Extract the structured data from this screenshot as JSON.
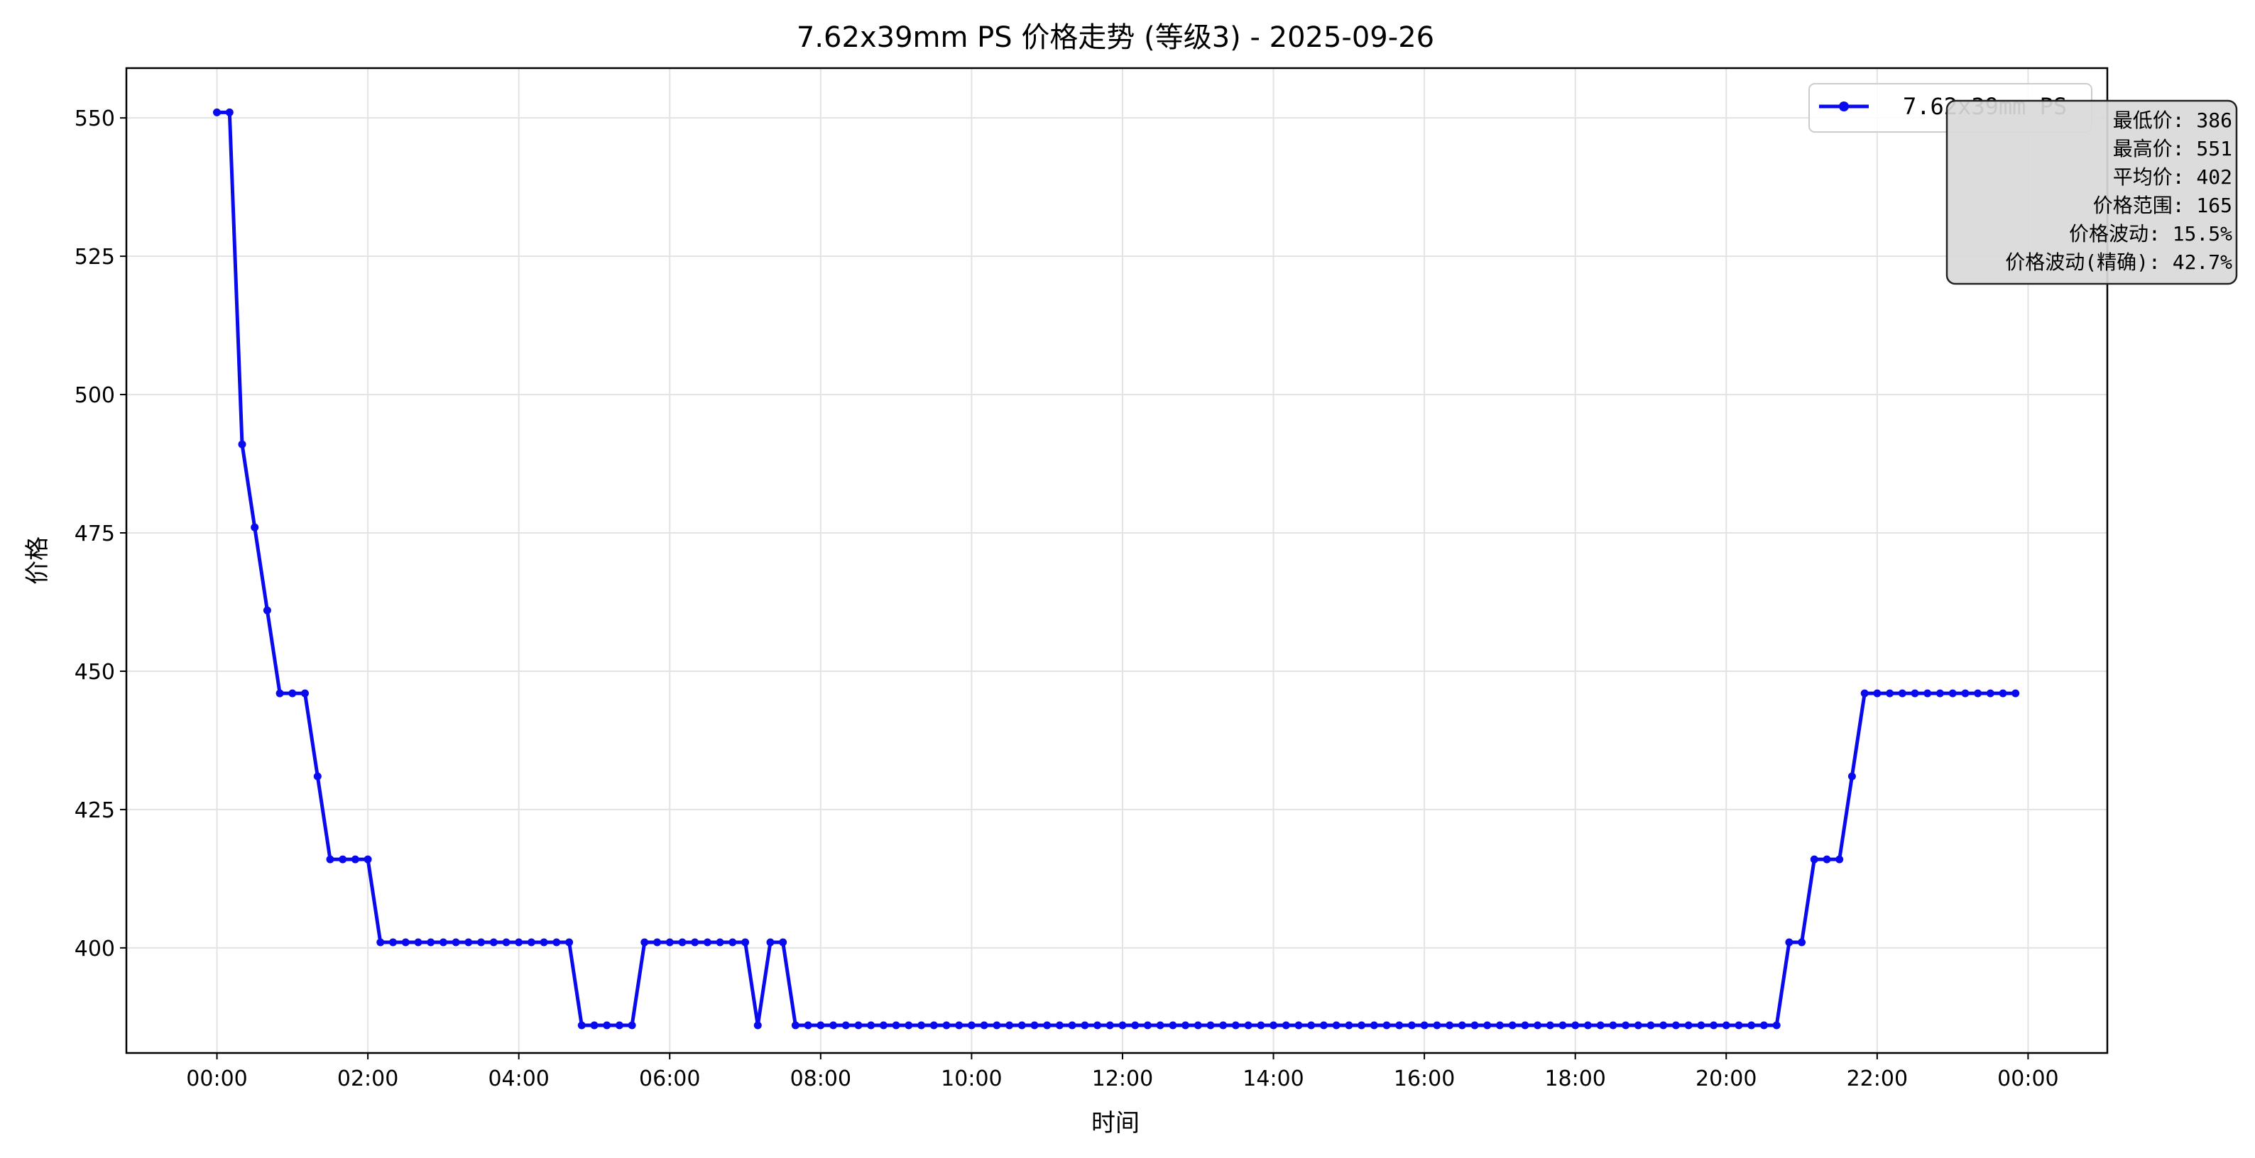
{
  "colors": {
    "line": "#0a0aee",
    "grid": "#e3e3e3",
    "axis": "#000000",
    "stats_bg": "#d9d9d9"
  },
  "chart_data": {
    "type": "line",
    "title": "7.62x39mm PS 价格走势 (等级3) - 2025-09-26",
    "xlabel": "时间",
    "ylabel": "价格",
    "xlim_hours": [
      -1.2,
      25.05
    ],
    "ylim": [
      381,
      559
    ],
    "x_ticks": [
      {
        "hour": 0,
        "label": "00:00"
      },
      {
        "hour": 2,
        "label": "02:00"
      },
      {
        "hour": 4,
        "label": "04:00"
      },
      {
        "hour": 6,
        "label": "06:00"
      },
      {
        "hour": 8,
        "label": "08:00"
      },
      {
        "hour": 10,
        "label": "10:00"
      },
      {
        "hour": 12,
        "label": "12:00"
      },
      {
        "hour": 14,
        "label": "14:00"
      },
      {
        "hour": 16,
        "label": "16:00"
      },
      {
        "hour": 18,
        "label": "18:00"
      },
      {
        "hour": 20,
        "label": "20:00"
      },
      {
        "hour": 22,
        "label": "22:00"
      },
      {
        "hour": 24,
        "label": "00:00"
      }
    ],
    "y_ticks": [
      {
        "value": 400,
        "label": "400"
      },
      {
        "value": 425,
        "label": "425"
      },
      {
        "value": 450,
        "label": "450"
      },
      {
        "value": 475,
        "label": "475"
      },
      {
        "value": 500,
        "label": "500"
      },
      {
        "value": 525,
        "label": "525"
      },
      {
        "value": 550,
        "label": "550"
      }
    ],
    "grid": true,
    "legend": {
      "position": "top-right",
      "label": "7.62x39mm PS"
    },
    "series": [
      {
        "name": "7.62x39mm PS",
        "interval_hours": 0.16667,
        "values": [
          551,
          551,
          491,
          476,
          461,
          446,
          446,
          446,
          431,
          416,
          416,
          416,
          416,
          401,
          401,
          401,
          401,
          401,
          401,
          401,
          401,
          401,
          401,
          401,
          401,
          401,
          401,
          401,
          401,
          386,
          386,
          386,
          386,
          386,
          401,
          401,
          401,
          401,
          401,
          401,
          401,
          401,
          401,
          386,
          401,
          401,
          386,
          386,
          386,
          386,
          386,
          386,
          386,
          386,
          386,
          386,
          386,
          386,
          386,
          386,
          386,
          386,
          386,
          386,
          386,
          386,
          386,
          386,
          386,
          386,
          386,
          386,
          386,
          386,
          386,
          386,
          386,
          386,
          386,
          386,
          386,
          386,
          386,
          386,
          386,
          386,
          386,
          386,
          386,
          386,
          386,
          386,
          386,
          386,
          386,
          386,
          386,
          386,
          386,
          386,
          386,
          386,
          386,
          386,
          386,
          386,
          386,
          386,
          386,
          386,
          386,
          386,
          386,
          386,
          386,
          386,
          386,
          386,
          386,
          386,
          386,
          386,
          386,
          386,
          386,
          401,
          401,
          416,
          416,
          416,
          431,
          446,
          446,
          446,
          446,
          446,
          446,
          446,
          446,
          446,
          446,
          446,
          446,
          446
        ]
      }
    ],
    "stats": [
      "最低价: 386",
      "最高价: 551",
      "平均价: 402",
      "价格范围: 165",
      "价格波动: 15.5%",
      "价格波动(精确): 42.7%"
    ]
  }
}
